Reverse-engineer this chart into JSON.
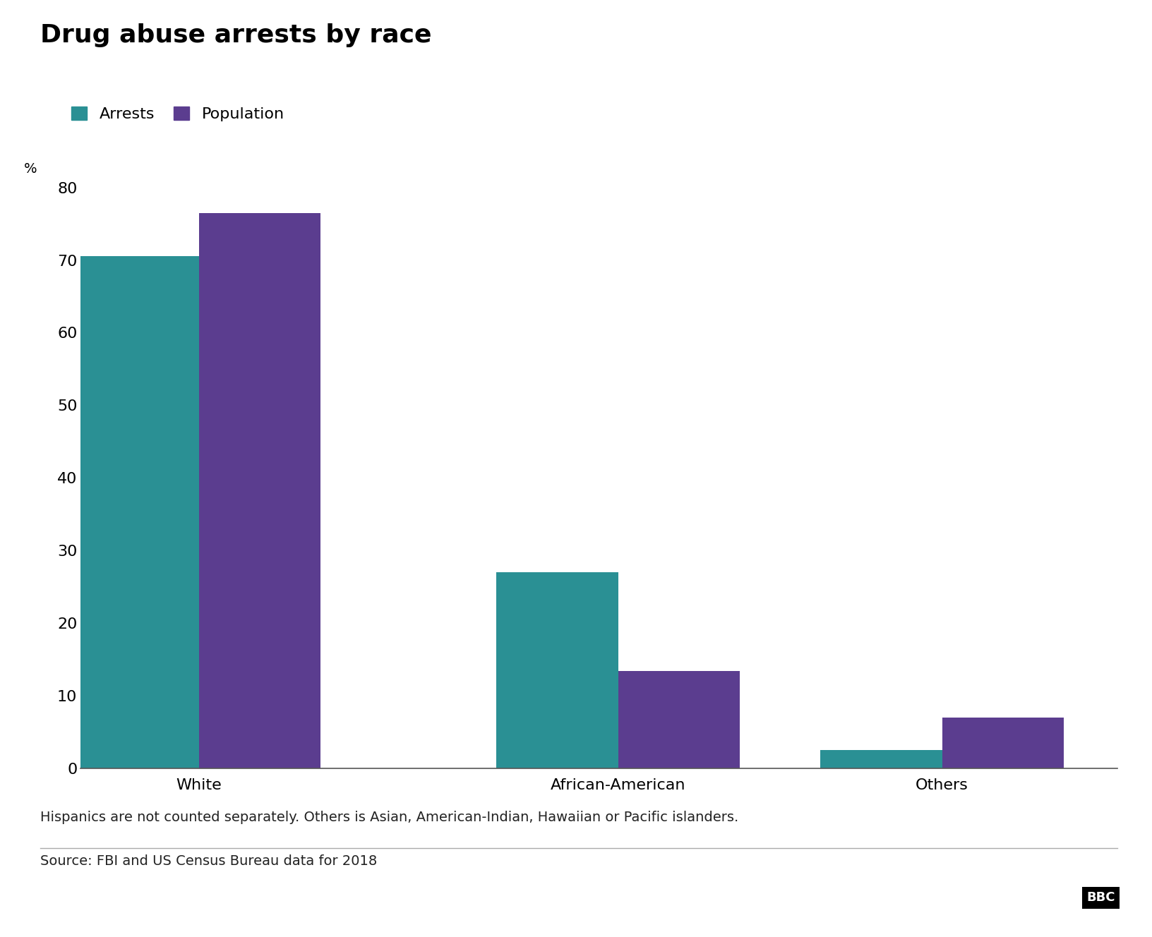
{
  "title": "Drug abuse arrests by race",
  "categories": [
    "White",
    "African-American",
    "Others"
  ],
  "arrests": [
    70.5,
    27.0,
    2.5
  ],
  "population": [
    76.5,
    13.4,
    7.0
  ],
  "arrests_color": "#2a9094",
  "population_color": "#5b3d8f",
  "ylabel": "%",
  "ylim": [
    0,
    80
  ],
  "yticks": [
    0,
    10,
    20,
    30,
    40,
    50,
    60,
    70,
    80
  ],
  "legend_labels": [
    "Arrests",
    "Population"
  ],
  "footnote1": "Hispanics are not counted separately. Others is Asian, American-Indian, Hawaiian or Pacific islanders.",
  "footnote2": "Source: FBI and US Census Bureau data for 2018",
  "bar_width": 0.32,
  "background_color": "#ffffff",
  "title_fontsize": 26,
  "legend_fontsize": 16,
  "tick_fontsize": 16,
  "footnote_fontsize": 14,
  "ylabel_fontsize": 14
}
